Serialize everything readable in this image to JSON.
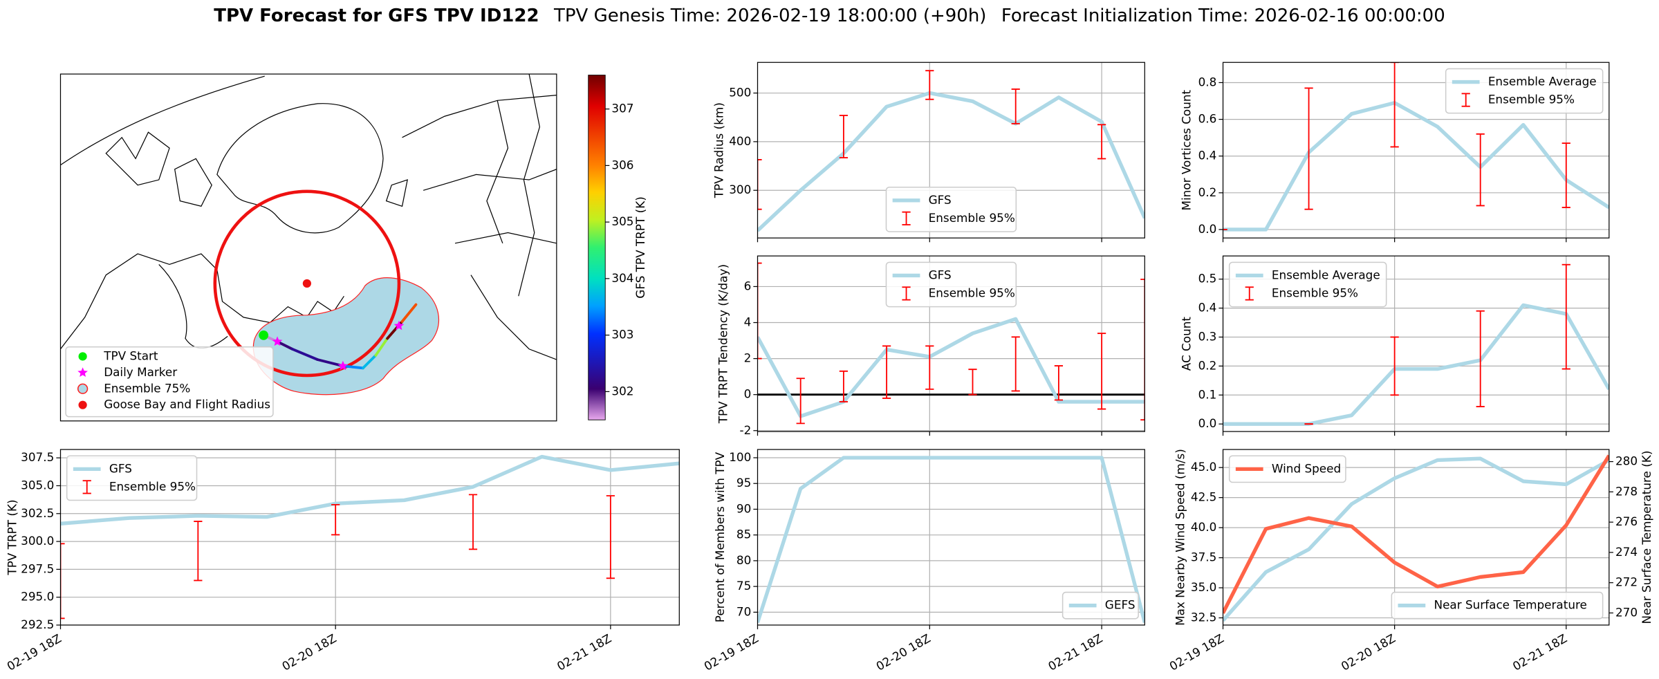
{
  "title": {
    "main": "TPV Forecast for GFS TPV ID122",
    "genesis": "TPV Genesis Time: 2026-02-19 18:00:00 (+90h)",
    "init": "Forecast Initialization Time: 2026-02-16 00:00:00"
  },
  "time_axis": {
    "x": [
      "02-19 18Z",
      "02-20 00Z",
      "02-20 06Z",
      "02-20 12Z",
      "02-20 18Z",
      "02-21 00Z",
      "02-21 06Z",
      "02-21 12Z",
      "02-21 18Z",
      "02-22 00Z"
    ],
    "xticks": [
      "02-19 18Z",
      "02-20 18Z",
      "02-21 18Z"
    ]
  },
  "chart_data": [
    {
      "type": "map",
      "legend": [
        "TPV Start",
        "Daily Marker",
        "Ensemble 75%",
        "Goose Bay and Flight Radius"
      ],
      "colorbar": {
        "label": "GFS TPV TRPT (K)",
        "clim": [
          301.5,
          307.6
        ],
        "ticks": [
          302,
          303,
          304,
          305,
          306,
          307
        ]
      }
    },
    {
      "type": "line",
      "ylabel": "TPV Radius (km)",
      "ylim": [
        202,
        563
      ],
      "yticks": [
        300,
        400,
        500
      ],
      "grid": true,
      "legend_loc": "lower center",
      "series": [
        {
          "name": "GFS",
          "color": "#add8e6",
          "values": [
            217,
            300,
            376,
            472,
            500,
            483,
            437,
            491,
            441,
            243
          ]
        },
        {
          "name": "Ensemble 95%",
          "color": "#ff0000",
          "low": [
            261,
            null,
            367,
            null,
            487,
            null,
            437,
            null,
            365,
            null
          ],
          "high": [
            363,
            null,
            454,
            null,
            546,
            null,
            508,
            null,
            435,
            null
          ]
        }
      ]
    },
    {
      "type": "line",
      "ylabel": "Minor Vortices Count",
      "ylim": [
        -0.046,
        0.91
      ],
      "yticks": [
        {
          "value": 0,
          "label": "0.0"
        },
        0.2,
        0.4,
        0.6,
        0.8
      ],
      "grid": true,
      "legend_loc": "upper right",
      "series": [
        {
          "name": "Ensemble Average",
          "color": "#add8e6",
          "values": [
            0,
            0,
            0.42,
            0.63,
            0.69,
            0.56,
            0.34,
            0.57,
            0.27,
            0.12
          ]
        },
        {
          "name": "Ensemble 95%",
          "color": "#ff0000",
          "low": [
            0,
            null,
            0.11,
            null,
            0.45,
            null,
            0.13,
            null,
            0.12,
            null
          ],
          "high": [
            0,
            null,
            0.77,
            null,
            0.91,
            null,
            0.52,
            null,
            0.47,
            null
          ]
        }
      ]
    },
    {
      "type": "line",
      "ylabel": "TPV TRPT Tendency (K/day)",
      "ylim": [
        -2.05,
        7.7
      ],
      "yticks": [
        -2,
        0,
        2,
        4,
        6
      ],
      "grid": true,
      "hline": 0,
      "legend_loc": "upper center",
      "series": [
        {
          "name": "GFS",
          "color": "#add8e6",
          "values": [
            3.2,
            -1.2,
            -0.4,
            2.5,
            2.1,
            3.4,
            4.2,
            -0.4,
            -0.4,
            -0.4
          ]
        },
        {
          "name": "Ensemble 95%",
          "color": "#ff0000",
          "low": [
            2.0,
            -1.6,
            -0.4,
            -0.2,
            0.3,
            0.0,
            0.2,
            -0.3,
            -0.8,
            -1.4
          ],
          "high": [
            7.3,
            0.9,
            1.3,
            2.7,
            2.7,
            1.4,
            3.2,
            1.6,
            3.4,
            6.4
          ]
        }
      ]
    },
    {
      "type": "line",
      "ylabel": "AC Count",
      "ylim": [
        -0.026,
        0.58
      ],
      "yticks": [
        {
          "value": 0,
          "label": "0.0"
        },
        0.1,
        0.2,
        0.3,
        0.4,
        0.5
      ],
      "grid": true,
      "legend_loc": "upper left",
      "series": [
        {
          "name": "Ensemble Average",
          "color": "#add8e6",
          "values": [
            0,
            0,
            0,
            0.03,
            0.19,
            0.19,
            0.22,
            0.41,
            0.38,
            0.12
          ]
        },
        {
          "name": "Ensemble 95%",
          "color": "#ff0000",
          "low": [
            null,
            null,
            0,
            null,
            0.1,
            null,
            0.06,
            null,
            0.19,
            null
          ],
          "high": [
            null,
            null,
            0,
            null,
            0.3,
            null,
            0.39,
            null,
            0.55,
            null
          ]
        }
      ]
    },
    {
      "type": "line",
      "ylabel": "TPV TRPT (K)",
      "ylim": [
        292.5,
        308.25
      ],
      "yticks": [
        292.5,
        {
          "value": 295,
          "label": "295.0"
        },
        297.5,
        {
          "value": 300,
          "label": "300.0"
        },
        302.5,
        {
          "value": 305,
          "label": "305.0"
        },
        307.5
      ],
      "grid": true,
      "legend_loc": "upper left",
      "series": [
        {
          "name": "GFS",
          "color": "#add8e6",
          "values": [
            301.6,
            302.1,
            302.3,
            302.2,
            303.4,
            303.7,
            304.9,
            307.6,
            306.4,
            307.0
          ]
        },
        {
          "name": "Ensemble 95%",
          "color": "#ff0000",
          "low": [
            293.1,
            null,
            296.5,
            null,
            300.6,
            null,
            299.3,
            null,
            296.7,
            null
          ],
          "high": [
            299.8,
            null,
            301.8,
            null,
            303.3,
            null,
            304.2,
            null,
            304.1,
            null
          ]
        }
      ]
    },
    {
      "type": "line",
      "ylabel": "Percent of Members with TPV",
      "ylim": [
        67.5,
        101.6
      ],
      "yticks": [
        70,
        75,
        80,
        85,
        90,
        95,
        100
      ],
      "grid": true,
      "legend_loc": "lower right",
      "series": [
        {
          "name": "GEFS",
          "color": "#add8e6",
          "values": [
            68,
            94,
            100,
            100,
            100,
            100,
            100,
            100,
            100,
            68
          ]
        }
      ]
    },
    {
      "type": "line",
      "ylabel": "Max Nearby Wind Speed (m/s)",
      "ylabel_color": "#ff6347",
      "y2label": "Near Surface Temperature (K)",
      "y2label_color": "#4169e1",
      "ylim": [
        31.9,
        46.5
      ],
      "yticks": [
        32.5,
        {
          "value": 35,
          "label": "35.0"
        },
        37.5,
        {
          "value": 40,
          "label": "40.0"
        },
        42.5,
        {
          "value": 45,
          "label": "45.0"
        }
      ],
      "y2lim": [
        269.2,
        280.8
      ],
      "y2ticks": [
        270,
        272,
        274,
        276,
        278,
        280
      ],
      "grid": true,
      "series": [
        {
          "name": "Wind Speed",
          "color": "#ff6347",
          "legend_loc": "upper left",
          "values": [
            32.9,
            39.9,
            40.8,
            40.1,
            37.1,
            35.1,
            35.9,
            36.3,
            40.2,
            46.0
          ]
        },
        {
          "name": "Near Surface Temperature",
          "color": "#add8e6",
          "axis": "y2",
          "legend_loc": "lower right",
          "values": [
            269.5,
            272.7,
            274.2,
            277.2,
            278.9,
            280.1,
            280.2,
            278.7,
            278.5,
            280.1
          ]
        }
      ]
    }
  ]
}
